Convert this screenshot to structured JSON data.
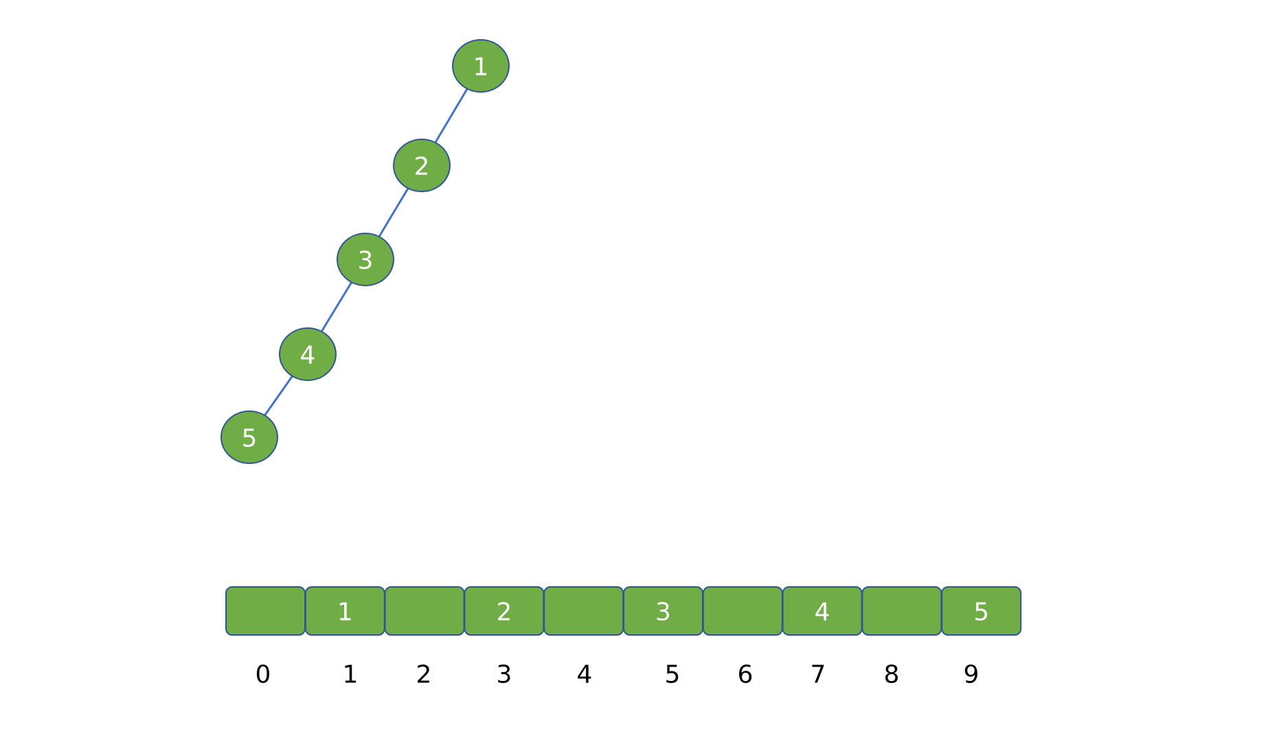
{
  "tree": {
    "nodes": [
      {
        "id": "n1",
        "label": "1"
      },
      {
        "id": "n2",
        "label": "2"
      },
      {
        "id": "n3",
        "label": "3"
      },
      {
        "id": "n4",
        "label": "4"
      },
      {
        "id": "n5",
        "label": "5"
      }
    ],
    "edges": [
      {
        "from": "n1",
        "to": "n2"
      },
      {
        "from": "n2",
        "to": "n3"
      },
      {
        "from": "n3",
        "to": "n4"
      },
      {
        "from": "n4",
        "to": "n5"
      }
    ]
  },
  "array": {
    "cells": [
      "",
      "1",
      "",
      "2",
      "",
      "3",
      "",
      "4",
      "",
      "5"
    ],
    "indices": [
      "0",
      "1",
      "2",
      "3",
      "4",
      "5",
      "6",
      "7",
      "8",
      "9"
    ]
  },
  "colors": {
    "node_fill": "#70ad47",
    "node_stroke": "#2f5597",
    "edge": "#4472c4",
    "label": "#ffffff",
    "index_text": "#000000"
  }
}
